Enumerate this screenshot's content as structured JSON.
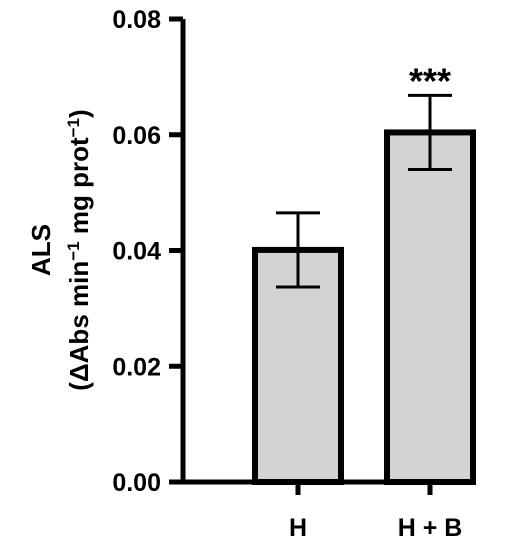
{
  "chart_data": {
    "type": "bar",
    "categories": [
      "H",
      "H + B"
    ],
    "values": [
      0.0401,
      0.0604
    ],
    "error": [
      0.0064,
      0.0064
    ],
    "annotations": [
      "",
      "***"
    ],
    "ylabel_line1": "ALS",
    "ylabel_line2_parts": [
      "(ΔAbs min",
      "−1",
      " mg prot",
      "−1",
      ")"
    ],
    "ylim": [
      0,
      0.08
    ],
    "yticks": [
      "0.00",
      "0.02",
      "0.04",
      "0.06",
      "0.08"
    ],
    "ytick_values": [
      0,
      0.02,
      0.04,
      0.06,
      0.08
    ],
    "grid": false,
    "bar_fill": "#d3d3d3",
    "bar_stroke": "#000000"
  }
}
